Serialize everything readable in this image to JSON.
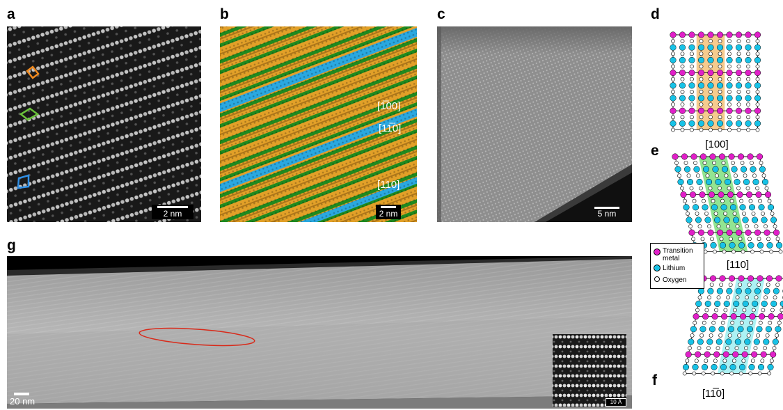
{
  "panels": {
    "a": {
      "letter": "a",
      "scale": "2 nm"
    },
    "b": {
      "letter": "b",
      "scale": "2 nm",
      "directions": [
        "[100]",
        "[1̅0]",
        "[110]"
      ],
      "dir_display": [
        "[1̅00]",
        "[11̅0]",
        "[110]"
      ]
    },
    "c": {
      "letter": "c",
      "scale": "5 nm"
    },
    "d": {
      "letter": "d",
      "caption": "[100]"
    },
    "e": {
      "letter": "e",
      "caption": "[110]"
    },
    "f": {
      "letter": "f",
      "caption": "[1̅0]",
      "caption_display": "[11̅0]"
    },
    "g": {
      "letter": "g",
      "scale": "20 nm",
      "inset_scale": "10 Å"
    }
  },
  "legend": {
    "items": [
      {
        "label": "Transition metal",
        "line1": "Transition",
        "line2": "metal",
        "color": "#e020c8"
      },
      {
        "label": "Lithium",
        "color": "#18c2e6"
      },
      {
        "label": "Oxygen",
        "color": "#ffffff"
      }
    ]
  },
  "colors": {
    "orange_domain": "#f0a030",
    "green_domain": "#1f8a1f",
    "blue_domain": "#2aa8e0",
    "highlight_orange": "#f5c27a",
    "highlight_green": "#7fe07f",
    "highlight_cyan": "#9ef0f2",
    "ellipse": "#e0201a"
  }
}
